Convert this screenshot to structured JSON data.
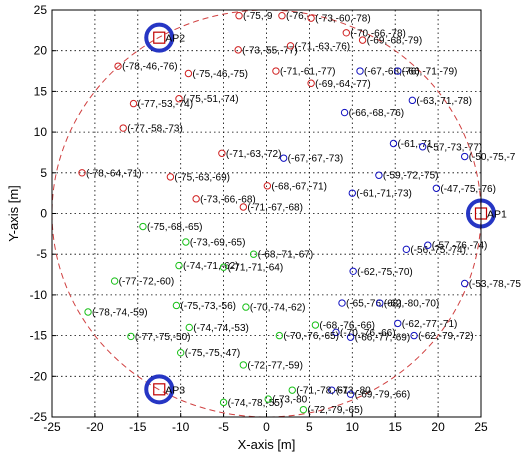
{
  "chart_data": {
    "type": "scatter",
    "title": "",
    "xlabel": "X-axis [m]",
    "ylabel": "Y-axis [m]",
    "xlim": [
      -25,
      25
    ],
    "ylim": [
      -25,
      25
    ],
    "xticks": [
      -25,
      -20,
      -15,
      -10,
      -5,
      0,
      5,
      10,
      15,
      20,
      25
    ],
    "yticks": [
      -25,
      -20,
      -15,
      -10,
      -5,
      0,
      5,
      10,
      15,
      20,
      25
    ],
    "grid": true,
    "colors": {
      "ap_marker": "#c00000",
      "ap_highlight": "#2636c4",
      "circle": "#d04040",
      "series_ap2": "#d02020",
      "series_ap1": "#1010c0",
      "series_ap3": "#18c018"
    },
    "access_points": [
      {
        "label": "AP1",
        "x": 25,
        "y": 0
      },
      {
        "label": "AP2",
        "x": -12.5,
        "y": 21.6
      },
      {
        "label": "AP3",
        "x": -12.5,
        "y": -21.6
      }
    ],
    "coverage_circle": {
      "cx": 0,
      "cy": 0,
      "r": 25
    },
    "series": [
      {
        "color_key": "series_ap2",
        "points": [
          {
            "x": -3.2,
            "y": 24.3,
            "label": "(-75,-9"
          },
          {
            "x": 1.8,
            "y": 24.3,
            "label": "(-76,-"
          },
          {
            "x": 5.2,
            "y": 24.0,
            "label": "(-73,-60,-78)"
          },
          {
            "x": 9.3,
            "y": 22.2,
            "label": "(-70,-66,-78)"
          },
          {
            "x": 11.2,
            "y": 21.3,
            "label": "(-69,-68,-79)"
          },
          {
            "x": -3.3,
            "y": 20.1,
            "label": "(-73,-55,-77)"
          },
          {
            "x": 2.8,
            "y": 20.6,
            "label": "(-71,-63,-76)"
          },
          {
            "x": -17.3,
            "y": 18.1,
            "label": "(-78,-46,-76)"
          },
          {
            "x": -9.1,
            "y": 17.2,
            "label": "(-75,-46,-75)"
          },
          {
            "x": 1.1,
            "y": 17.5,
            "label": "(-71,-61,-77)"
          },
          {
            "x": 5.2,
            "y": 16.0,
            "label": "(-69,-64,-77)"
          },
          {
            "x": -15.5,
            "y": 13.5,
            "label": "(-77,-53,-74)"
          },
          {
            "x": -10.2,
            "y": 14.1,
            "label": "(-75,-51,-74)"
          },
          {
            "x": -16.7,
            "y": 10.5,
            "label": "(-77,-58,-73)"
          },
          {
            "x": -5.2,
            "y": 7.4,
            "label": "(-71,-63,-72)"
          },
          {
            "x": -21.5,
            "y": 5.0,
            "label": "(-78,-64,-71)"
          },
          {
            "x": -11.2,
            "y": 4.5,
            "label": "(-75,-63,-69)"
          },
          {
            "x": 0.1,
            "y": 3.4,
            "label": "(-68,-67,-71)"
          },
          {
            "x": -8.2,
            "y": 1.8,
            "label": "(-73,-66,-68)"
          },
          {
            "x": -2.7,
            "y": 0.8,
            "label": "(-71,-67,-68)"
          }
        ]
      },
      {
        "color_key": "series_ap1",
        "points": [
          {
            "x": 10.9,
            "y": 17.5,
            "label": "(-67,-68,-76)"
          },
          {
            "x": 15.3,
            "y": 17.5,
            "label": "(-66,-71,-79)"
          },
          {
            "x": 17.0,
            "y": 13.9,
            "label": "(-63,-71,-78)"
          },
          {
            "x": 9.1,
            "y": 12.4,
            "label": "(-66,-68,-76)"
          },
          {
            "x": 14.8,
            "y": 8.6,
            "label": "(-61,-71"
          },
          {
            "x": 18.2,
            "y": 8.2,
            "label": "(-57,-73,-77)"
          },
          {
            "x": 23.1,
            "y": 7.0,
            "label": "(-50,-75,-7"
          },
          {
            "x": 2.0,
            "y": 6.8,
            "label": "(-67,-67,-73)"
          },
          {
            "x": 13.1,
            "y": 4.7,
            "label": "(-59,-72,-75)"
          },
          {
            "x": 10.0,
            "y": 2.5,
            "label": "(-61,-71,-73)"
          },
          {
            "x": 19.8,
            "y": 3.1,
            "label": "(-47,-75,-76)"
          },
          {
            "x": 16.3,
            "y": -4.4,
            "label": "(-56,-75,-74)"
          },
          {
            "x": 18.8,
            "y": -3.9,
            "label": "(-57,-76,-74)"
          },
          {
            "x": 10.1,
            "y": -7.1,
            "label": "(-62,-75,-70)"
          },
          {
            "x": 23.1,
            "y": -8.6,
            "label": "(-53,-78,-75"
          },
          {
            "x": 8.8,
            "y": -11.0,
            "label": "(-65,-76,-68)"
          },
          {
            "x": 13.2,
            "y": -11.0,
            "label": "(-62,-80,-70)"
          },
          {
            "x": 15.3,
            "y": -13.5,
            "label": "(-62,-77,-71)"
          },
          {
            "x": 17.2,
            "y": -15.0,
            "label": "(-62,-79,-72)"
          },
          {
            "x": 9.8,
            "y": -15.2,
            "label": "(-66,-77,-69)"
          },
          {
            "x": 8.1,
            "y": -14.6,
            "label": "(-70,-76,-66)"
          },
          {
            "x": 7.6,
            "y": -21.7,
            "label": "(-73,-80"
          },
          {
            "x": 9.8,
            "y": -22.2,
            "label": "(-69,-79,-66)"
          }
        ]
      },
      {
        "color_key": "series_ap3",
        "points": [
          {
            "x": -14.4,
            "y": -1.6,
            "label": "(-75,-68,-65)"
          },
          {
            "x": -9.4,
            "y": -3.5,
            "label": "(-73,-69,-65)"
          },
          {
            "x": -1.5,
            "y": -5.0,
            "label": "(-68,-71,-67)"
          },
          {
            "x": -10.2,
            "y": -6.4,
            "label": "(-74,-71,-62)"
          },
          {
            "x": -5.0,
            "y": -6.6,
            "label": "(-71,-71,-64)"
          },
          {
            "x": -17.7,
            "y": -8.3,
            "label": "(-77,-72,-60)"
          },
          {
            "x": -20.8,
            "y": -12.1,
            "label": "(-78,-74,-59)"
          },
          {
            "x": -10.5,
            "y": -11.3,
            "label": "(-75,-73,-56)"
          },
          {
            "x": -2.4,
            "y": -11.5,
            "label": "(-70,-74,-62)"
          },
          {
            "x": -15.8,
            "y": -15.1,
            "label": "(-77,-75,-50)"
          },
          {
            "x": -9.0,
            "y": -14.0,
            "label": "(-74,-74,-53)"
          },
          {
            "x": 5.7,
            "y": -13.7,
            "label": "(-68,-76,-66)"
          },
          {
            "x": 1.5,
            "y": -15.0,
            "label": "(-70,-76,-65)"
          },
          {
            "x": -10.0,
            "y": -17.1,
            "label": "(-75,-75,-47)"
          },
          {
            "x": -2.7,
            "y": -18.6,
            "label": "(-72,-77,-59)"
          },
          {
            "x": 3.0,
            "y": -21.7,
            "label": "(-71,-78,-61"
          },
          {
            "x": -5.0,
            "y": -23.2,
            "label": "(-74,-78,-55)"
          },
          {
            "x": 0.2,
            "y": -22.8,
            "label": "(-73,-80"
          },
          {
            "x": 4.3,
            "y": -24.1,
            "label": "(-72,-79,-65)"
          }
        ]
      }
    ]
  }
}
